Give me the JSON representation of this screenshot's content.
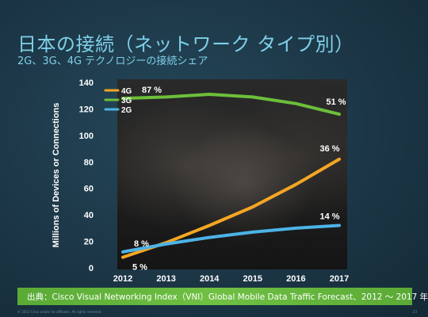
{
  "slide": {
    "title": "日本の接続（ネットワーク タイプ別）",
    "subtitle": "2G、3G、4G テクノロジーの接続シェア",
    "source": "出典：Cisco Visual Networking Index（VNI）Global Mobile Data Traffic Forecast、2012 〜 2017 年",
    "copyright": "© 2013 Cisco and/or its affiliates. All rights reserved.",
    "page_number": "23"
  },
  "chart_data": {
    "type": "line",
    "ylabel": "Millions of Devices or Connections",
    "xlabel": "",
    "x": [
      "2012",
      "2013",
      "2014",
      "2015",
      "2016",
      "2017"
    ],
    "ylim": [
      0,
      140
    ],
    "yticks": [
      "0",
      "20",
      "40",
      "60",
      "80",
      "100",
      "120",
      "140"
    ],
    "grid": false,
    "legend_position": "top-left",
    "series": [
      {
        "name": "4G",
        "color": "#f5a623",
        "values": [
          8,
          19,
          32,
          46,
          63,
          82
        ]
      },
      {
        "name": "3G",
        "color": "#6cbf3a",
        "values": [
          128,
          129,
          131,
          129,
          124,
          116
        ]
      },
      {
        "name": "2G",
        "color": "#4db3e6",
        "values": [
          12,
          18,
          23,
          27,
          30,
          32
        ]
      }
    ],
    "annotations": [
      {
        "text": "87 %",
        "series": "3G",
        "year": "2012"
      },
      {
        "text": "51 %",
        "series": "3G",
        "year": "2017"
      },
      {
        "text": "36 %",
        "series": "4G",
        "year": "2017"
      },
      {
        "text": "14 %",
        "series": "2G",
        "year": "2017"
      },
      {
        "text": "8 %",
        "series": "2G",
        "year": "2012"
      },
      {
        "text": "5 %",
        "series": "4G",
        "year": "2012"
      }
    ]
  }
}
